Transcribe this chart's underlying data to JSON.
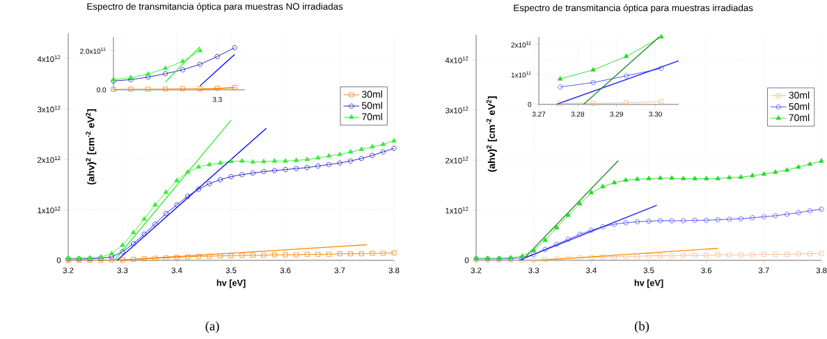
{
  "chart_data": [
    {
      "type": "line",
      "title": "Espectro de transmitancia óptica para muestras NO irradiadas",
      "xlabel": "hv [eV]",
      "ylabel": "(ahv)$^{2}$ [cm$^{-2}$ eV$^{2}$]",
      "annotations": [
        "(a)"
      ],
      "x": [
        3.2,
        3.22,
        3.24,
        3.26,
        3.28,
        3.3,
        3.32,
        3.34,
        3.36,
        3.38,
        3.4,
        3.42,
        3.44,
        3.46,
        3.48,
        3.5,
        3.52,
        3.54,
        3.56,
        3.58,
        3.6,
        3.62,
        3.64,
        3.66,
        3.68,
        3.7,
        3.72,
        3.74,
        3.76,
        3.78,
        3.8
      ],
      "xlim": [
        3.2,
        3.8
      ],
      "ylim": [
        0,
        4500000000000.0
      ],
      "xticks": [
        3.2,
        3.3,
        3.4,
        3.5,
        3.6,
        3.7,
        3.8
      ],
      "yticks": [
        0,
        {
          "value": 1000000000000.0,
          "label": "1x10$^{12}$"
        },
        {
          "value": 2000000000000.0,
          "label": "2x10$^{12}$"
        },
        {
          "value": 3000000000000.0,
          "label": "3x10$^{12}$"
        },
        {
          "value": 4000000000000.0,
          "label": "4x10$^{12}$"
        }
      ],
      "grid": true,
      "legend": "right",
      "series": [
        {
          "name": "30ml",
          "color": "#ff8000",
          "marker": "square",
          "values": [
            0,
            0,
            0,
            0,
            10000000000.0,
            10000000000.0,
            20000000000.0,
            30000000000.0,
            40000000000.0,
            50000000000.0,
            60000000000.0,
            70000000000.0,
            80000000000.0,
            80000000000.0,
            90000000000.0,
            90000000000.0,
            100000000000.0,
            100000000000.0,
            100000000000.0,
            110000000000.0,
            110000000000.0,
            110000000000.0,
            120000000000.0,
            120000000000.0,
            120000000000.0,
            130000000000.0,
            130000000000.0,
            130000000000.0,
            140000000000.0,
            140000000000.0,
            150000000000.0
          ]
        },
        {
          "name": "50ml",
          "color": "#1a1acc",
          "marker": "circle",
          "values": [
            30000000000.0,
            30000000000.0,
            30000000000.0,
            40000000000.0,
            70000000000.0,
            170000000000.0,
            330000000000.0,
            520000000000.0,
            720000000000.0,
            930000000000.0,
            1100000000000.0,
            1270000000000.0,
            1410000000000.0,
            1520000000000.0,
            1600000000000.0,
            1660000000000.0,
            1700000000000.0,
            1730000000000.0,
            1760000000000.0,
            1780000000000.0,
            1800000000000.0,
            1820000000000.0,
            1840000000000.0,
            1870000000000.0,
            1900000000000.0,
            1930000000000.0,
            1970000000000.0,
            2020000000000.0,
            2080000000000.0,
            2150000000000.0,
            2220000000000.0
          ]
        },
        {
          "name": "70ml",
          "color": "#33ee33",
          "marker": "triangle",
          "values": [
            40000000000.0,
            40000000000.0,
            50000000000.0,
            70000000000.0,
            130000000000.0,
            300000000000.0,
            550000000000.0,
            820000000000.0,
            1100000000000.0,
            1350000000000.0,
            1580000000000.0,
            1750000000000.0,
            1850000000000.0,
            1900000000000.0,
            1930000000000.0,
            1960000000000.0,
            1970000000000.0,
            1950000000000.0,
            1960000000000.0,
            1970000000000.0,
            1970000000000.0,
            1980000000000.0,
            2000000000000.0,
            2030000000000.0,
            2070000000000.0,
            2100000000000.0,
            2150000000000.0,
            2200000000000.0,
            2250000000000.0,
            2300000000000.0,
            2370000000000.0
          ]
        },
        {
          "type": "line",
          "color": "#ff8000",
          "marker": "none",
          "x": [
            3.29,
            3.75
          ],
          "values": [
            0,
            310000000000.0
          ]
        },
        {
          "type": "line",
          "color": "#0000ff",
          "marker": "none",
          "x": [
            3.29,
            3.565
          ],
          "values": [
            0,
            2620000000000.0
          ]
        },
        {
          "type": "line",
          "color": "#33ee33",
          "marker": "none",
          "x": [
            3.285,
            3.5
          ],
          "values": [
            0,
            2780000000000.0
          ]
        }
      ]
    },
    {
      "type": "line",
      "categories": [
        null,
        null,
        null,
        null,
        null,
        null,
        "3.3",
        null
      ],
      "ylim": [
        0,
        270000000000.0
      ],
      "yticks": [
        {
          "value": 0,
          "label": "0.0"
        },
        {
          "value": 200000000000.0,
          "label": "2.0x10$^{11}$"
        }
      ],
      "grid": true,
      "series": [
        {
          "color": "#ff8000",
          "marker": "square",
          "values": [
            2000000000.0,
            3000000000.0,
            3000000000.0,
            4000000000.0,
            5000000000.0,
            5000000000.0,
            8000000000.0,
            12000000000.0
          ]
        },
        {
          "color": "#1a1acc",
          "marker": "circle",
          "values": [
            45000000000.0,
            52000000000.0,
            65000000000.0,
            82000000000.0,
            102000000000.0,
            130000000000.0,
            170000000000.0,
            215000000000.0
          ]
        },
        {
          "color": "#33ee33",
          "marker": "triangle",
          "values": [
            52000000000.0,
            62000000000.0,
            80000000000.0,
            110000000000.0,
            145000000000.0,
            200000000000.0,
            null,
            null
          ]
        },
        {
          "type": "line",
          "color": "#ff8000",
          "marker": "none",
          "values": [
            null,
            null,
            null,
            null,
            null,
            1000000000.0,
            6000000000.0,
            10000000000.0
          ]
        },
        {
          "type": "line",
          "color": "#0000ff",
          "marker": "none",
          "values": [
            null,
            null,
            null,
            null,
            null,
            20000000000.0,
            100000000000.0,
            180000000000.0
          ]
        },
        {
          "type": "line",
          "color": "#33ee33",
          "marker": "none",
          "values": [
            null,
            null,
            null,
            40000000000.0,
            130000000000.0,
            220000000000.0,
            null,
            null
          ]
        }
      ]
    },
    {
      "type": "line",
      "title": "Espectro de transmitancia óptica para muestras irradiadas",
      "xlabel": "hv [eV]",
      "ylabel": "(ahv)$^{2}$ [cm$^{-2}$ eV$^{2}$]",
      "annotations": [
        "(b)"
      ],
      "x": [
        3.2,
        3.22,
        3.24,
        3.26,
        3.28,
        3.3,
        3.32,
        3.34,
        3.36,
        3.38,
        3.4,
        3.42,
        3.44,
        3.46,
        3.48,
        3.5,
        3.52,
        3.54,
        3.56,
        3.58,
        3.6,
        3.62,
        3.64,
        3.66,
        3.68,
        3.7,
        3.72,
        3.74,
        3.76,
        3.78,
        3.8
      ],
      "xlim": [
        3.2,
        3.8
      ],
      "ylim": [
        0,
        4500000000000.0
      ],
      "xticks": [
        3.2,
        3.3,
        3.4,
        3.5,
        3.6,
        3.7,
        3.8
      ],
      "yticks": [
        0,
        {
          "value": 1000000000000.0,
          "label": "1x10$^{12}$"
        },
        {
          "value": 2000000000000.0,
          "label": "2x10$^{12}$"
        },
        {
          "value": 3000000000000.0,
          "label": "3x10$^{12}$"
        },
        {
          "value": 4000000000000.0,
          "label": "4x10$^{12}$"
        }
      ],
      "grid": true,
      "legend": "right",
      "series": [
        {
          "name": "30ml",
          "color": "#f8b98a",
          "marker": "square",
          "values": [
            0,
            0,
            0,
            0,
            10000000000.0,
            10000000000.0,
            20000000000.0,
            30000000000.0,
            40000000000.0,
            50000000000.0,
            60000000000.0,
            70000000000.0,
            70000000000.0,
            80000000000.0,
            80000000000.0,
            90000000000.0,
            90000000000.0,
            90000000000.0,
            100000000000.0,
            100000000000.0,
            100000000000.0,
            110000000000.0,
            110000000000.0,
            110000000000.0,
            110000000000.0,
            120000000000.0,
            120000000000.0,
            120000000000.0,
            130000000000.0,
            130000000000.0,
            140000000000.0
          ]
        },
        {
          "name": "50ml",
          "color": "#4a4aff",
          "marker": "circle",
          "values": [
            30000000000.0,
            30000000000.0,
            30000000000.0,
            30000000000.0,
            50000000000.0,
            120000000000.0,
            220000000000.0,
            320000000000.0,
            420000000000.0,
            520000000000.0,
            600000000000.0,
            670000000000.0,
            720000000000.0,
            750000000000.0,
            770000000000.0,
            780000000000.0,
            790000000000.0,
            790000000000.0,
            790000000000.0,
            800000000000.0,
            800000000000.0,
            810000000000.0,
            820000000000.0,
            830000000000.0,
            850000000000.0,
            870000000000.0,
            890000000000.0,
            920000000000.0,
            950000000000.0,
            990000000000.0,
            1020000000000.0
          ]
        },
        {
          "name": "70ml",
          "color": "#22dd22",
          "marker": "triangle",
          "values": [
            40000000000.0,
            40000000000.0,
            40000000000.0,
            50000000000.0,
            80000000000.0,
            200000000000.0,
            400000000000.0,
            650000000000.0,
            900000000000.0,
            1130000000000.0,
            1350000000000.0,
            1470000000000.0,
            1550000000000.0,
            1600000000000.0,
            1620000000000.0,
            1630000000000.0,
            1640000000000.0,
            1640000000000.0,
            1630000000000.0,
            1630000000000.0,
            1630000000000.0,
            1630000000000.0,
            1650000000000.0,
            1660000000000.0,
            1690000000000.0,
            1720000000000.0,
            1760000000000.0,
            1800000000000.0,
            1860000000000.0,
            1920000000000.0,
            1980000000000.0
          ]
        },
        {
          "type": "line",
          "color": "#ff8c00",
          "marker": "none",
          "x": [
            3.31,
            3.62
          ],
          "values": [
            0,
            240000000000.0
          ]
        },
        {
          "type": "line",
          "color": "#1a1aff",
          "marker": "none",
          "x": [
            3.274,
            3.514
          ],
          "values": [
            0,
            1100000000000.0
          ]
        },
        {
          "type": "line",
          "color": "#1a8a1a",
          "marker": "none",
          "x": [
            3.28,
            3.447
          ],
          "values": [
            0,
            1990000000000.0
          ]
        }
      ]
    },
    {
      "type": "line",
      "xlim": [
        3.27,
        3.306
      ],
      "ylim": [
        0,
        225000000000.0
      ],
      "xticks": [
        {
          "value": 3.27,
          "label": "3.27"
        },
        {
          "value": 3.28,
          "label": "3.28"
        },
        {
          "value": 3.29,
          "label": "3.29"
        },
        {
          "value": 3.3,
          "label": "3.30"
        }
      ],
      "yticks": [
        0,
        {
          "value": 100000000000.0,
          "label": "1x10$^{11}$"
        },
        {
          "value": 200000000000.0,
          "label": "2x10$^{11}$"
        }
      ],
      "grid": true,
      "x": [
        3.2755,
        3.284,
        3.2925,
        3.3015
      ],
      "series": [
        {
          "color": "#f8b98a",
          "marker": "square",
          "values": [
            4000000000.0,
            4000000000.0,
            5000000000.0,
            10000000000.0
          ]
        },
        {
          "color": "#4a4aff",
          "marker": "circle",
          "values": [
            58000000000.0,
            73000000000.0,
            95000000000.0,
            120000000000.0
          ]
        },
        {
          "color": "#22dd22",
          "marker": "triangle",
          "values": [
            85000000000.0,
            115000000000.0,
            160000000000.0,
            225000000000.0
          ]
        },
        {
          "type": "line",
          "color": "#1a1aff",
          "marker": "none",
          "x": [
            3.2745,
            3.306
          ],
          "values": [
            0,
            145000000000.0
          ]
        },
        {
          "type": "line",
          "color": "#1a8a1a",
          "marker": "none",
          "x": [
            3.2815,
            3.301
          ],
          "values": [
            0,
            225000000000.0
          ]
        }
      ]
    }
  ]
}
